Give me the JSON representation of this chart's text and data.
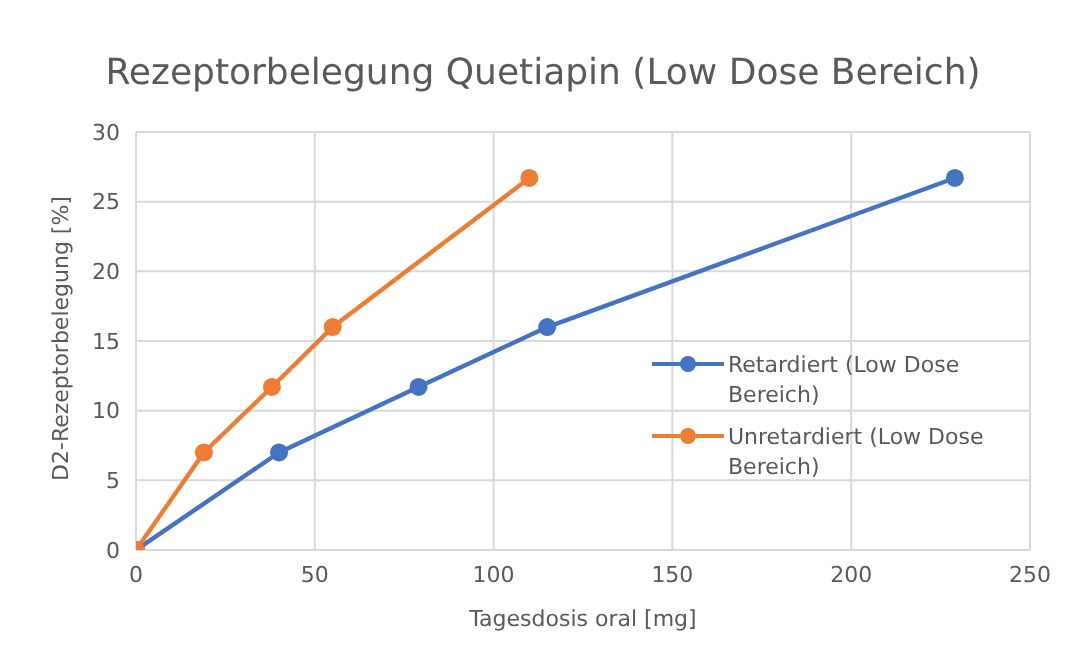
{
  "chart_data": {
    "type": "line",
    "title": "Rezeptorbelegung Quetiapin (Low Dose Bereich)",
    "xlabel": "Tagesdosis oral [mg]",
    "ylabel": "D2-Rezeptorbelegung  [%]",
    "series": [
      {
        "name": "Retardiert (Low Dose Bereich)",
        "color": "#4472c4",
        "x": [
          0,
          40,
          79,
          115,
          229
        ],
        "values": [
          0,
          7,
          11.7,
          16,
          26.7
        ]
      },
      {
        "name": "Unretardiert (Low Dose Bereich)",
        "color": "#ed7d31",
        "x": [
          0,
          19,
          38,
          55,
          110
        ],
        "values": [
          0,
          7,
          11.7,
          16,
          26.7
        ]
      }
    ],
    "xlim": [
      0,
      250
    ],
    "xticks": [
      0,
      50,
      100,
      150,
      200,
      250
    ],
    "ylim": [
      0,
      30
    ],
    "yticks": [
      0,
      5,
      10,
      15,
      20,
      25,
      30
    ],
    "grid": true,
    "legend": "right",
    "marker": "circle",
    "line_style": "solid"
  }
}
